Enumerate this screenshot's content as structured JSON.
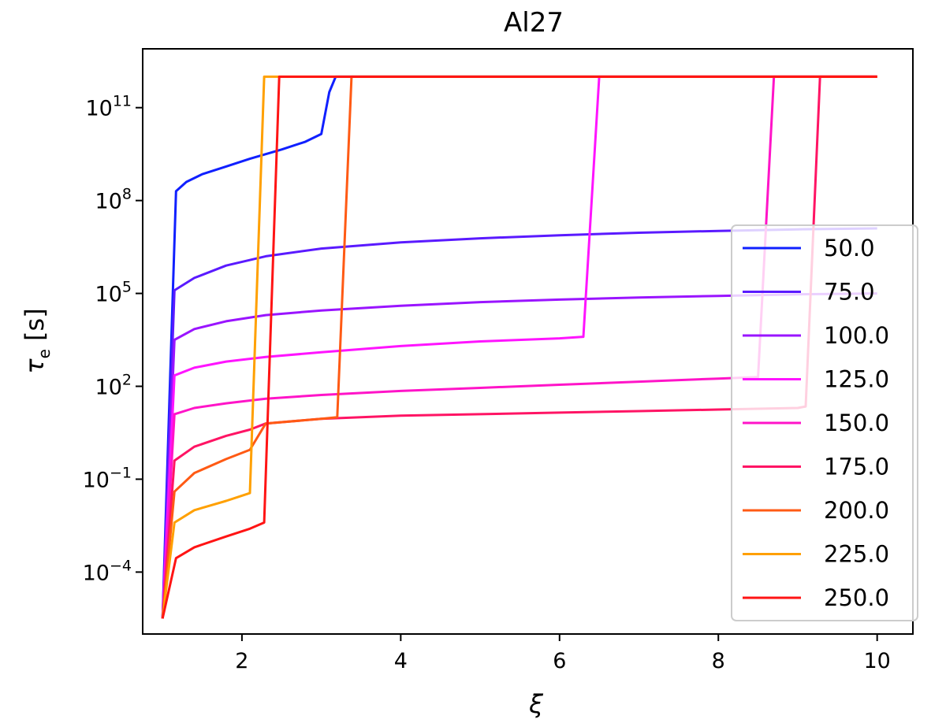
{
  "chart_data": {
    "type": "line",
    "title": "Al27",
    "xlabel": "ξ",
    "ylabel_main": "τ",
    "ylabel_sub": "e",
    "ylabel_unit": " [s]",
    "xlim": [
      0.75,
      10.45
    ],
    "ylim_log10": [
      -6.0,
      12.9
    ],
    "yscale": "log",
    "grid": false,
    "legend_position": "lower right",
    "x_ticks": [
      {
        "value": 2,
        "label": "2"
      },
      {
        "value": 4,
        "label": "4"
      },
      {
        "value": 6,
        "label": "6"
      },
      {
        "value": 8,
        "label": "8"
      },
      {
        "value": 10,
        "label": "10"
      }
    ],
    "y_ticks": [
      {
        "exp": 11,
        "base": "10",
        "sup": "11"
      },
      {
        "exp": 8,
        "base": "10",
        "sup": "8"
      },
      {
        "exp": 5,
        "base": "10",
        "sup": "5"
      },
      {
        "exp": 2,
        "base": "10",
        "sup": "2"
      },
      {
        "exp": -1,
        "base": "10",
        "sup": "−1"
      },
      {
        "exp": -4,
        "base": "10",
        "sup": "−4"
      }
    ],
    "series": [
      {
        "name": "50.0",
        "color": "#1020ff",
        "x": [
          1.0,
          1.17,
          1.3,
          1.5,
          1.8,
          2.1,
          2.5,
          2.8,
          3.0,
          3.1,
          3.18,
          10.0
        ],
        "log10_y": [
          -5.5,
          8.3,
          8.6,
          8.85,
          9.1,
          9.35,
          9.65,
          9.9,
          10.15,
          11.5,
          12.0,
          12.0
        ]
      },
      {
        "name": "75.0",
        "color": "#5a1aff",
        "x": [
          1.0,
          1.15,
          1.4,
          1.8,
          2.3,
          3.0,
          4.0,
          5.0,
          6.0,
          7.0,
          8.0,
          9.0,
          10.0
        ],
        "log10_y": [
          -5.5,
          5.1,
          5.5,
          5.9,
          6.2,
          6.45,
          6.65,
          6.78,
          6.88,
          6.96,
          7.02,
          7.07,
          7.1
        ]
      },
      {
        "name": "100.0",
        "color": "#9a14ff",
        "x": [
          1.0,
          1.15,
          1.4,
          1.8,
          2.3,
          3.0,
          4.0,
          5.0,
          6.0,
          7.0,
          8.0,
          9.0,
          10.0
        ],
        "log10_y": [
          -5.5,
          3.5,
          3.85,
          4.1,
          4.3,
          4.45,
          4.6,
          4.72,
          4.8,
          4.87,
          4.92,
          4.97,
          5.0
        ]
      },
      {
        "name": "125.0",
        "color": "#ff14ff",
        "x": [
          1.0,
          1.15,
          1.4,
          1.8,
          2.3,
          3.0,
          4.0,
          5.0,
          6.0,
          6.3,
          6.5,
          10.0
        ],
        "log10_y": [
          -5.5,
          2.35,
          2.6,
          2.8,
          2.95,
          3.1,
          3.3,
          3.45,
          3.55,
          3.6,
          12.0,
          12.0
        ]
      },
      {
        "name": "150.0",
        "color": "#ff14c8",
        "x": [
          1.0,
          1.15,
          1.4,
          1.8,
          2.3,
          3.0,
          4.0,
          5.0,
          6.0,
          7.0,
          8.0,
          8.5,
          8.7,
          10.0
        ],
        "log10_y": [
          -5.5,
          1.1,
          1.3,
          1.45,
          1.6,
          1.72,
          1.85,
          1.95,
          2.05,
          2.15,
          2.25,
          2.3,
          12.0,
          12.0
        ]
      },
      {
        "name": "175.0",
        "color": "#ff1464",
        "x": [
          1.0,
          1.15,
          1.4,
          1.8,
          2.1,
          2.3,
          3.0,
          4.0,
          5.0,
          6.0,
          7.0,
          8.0,
          9.0,
          9.1,
          9.28,
          10.0
        ],
        "log10_y": [
          -5.5,
          -0.4,
          0.05,
          0.4,
          0.6,
          0.8,
          0.95,
          1.05,
          1.1,
          1.15,
          1.2,
          1.25,
          1.3,
          1.35,
          12.0,
          12.0
        ]
      },
      {
        "name": "200.0",
        "color": "#ff5a14",
        "x": [
          1.0,
          1.15,
          1.4,
          1.8,
          2.1,
          2.3,
          3.0,
          3.2,
          3.38,
          10.0
        ],
        "log10_y": [
          -5.5,
          -1.4,
          -0.8,
          -0.35,
          -0.05,
          0.8,
          0.95,
          1.0,
          12.0,
          12.0
        ]
      },
      {
        "name": "225.0",
        "color": "#ffa000",
        "x": [
          1.0,
          1.15,
          1.4,
          1.8,
          2.1,
          2.28,
          10.0
        ],
        "log10_y": [
          -5.5,
          -2.4,
          -2.0,
          -1.7,
          -1.45,
          12.0,
          12.0
        ]
      },
      {
        "name": "250.0",
        "color": "#ff1414",
        "x": [
          1.0,
          1.17,
          1.4,
          1.8,
          2.1,
          2.28,
          2.47,
          10.0
        ],
        "log10_y": [
          -5.5,
          -3.55,
          -3.2,
          -2.85,
          -2.6,
          -2.4,
          12.0,
          12.0
        ]
      }
    ]
  }
}
